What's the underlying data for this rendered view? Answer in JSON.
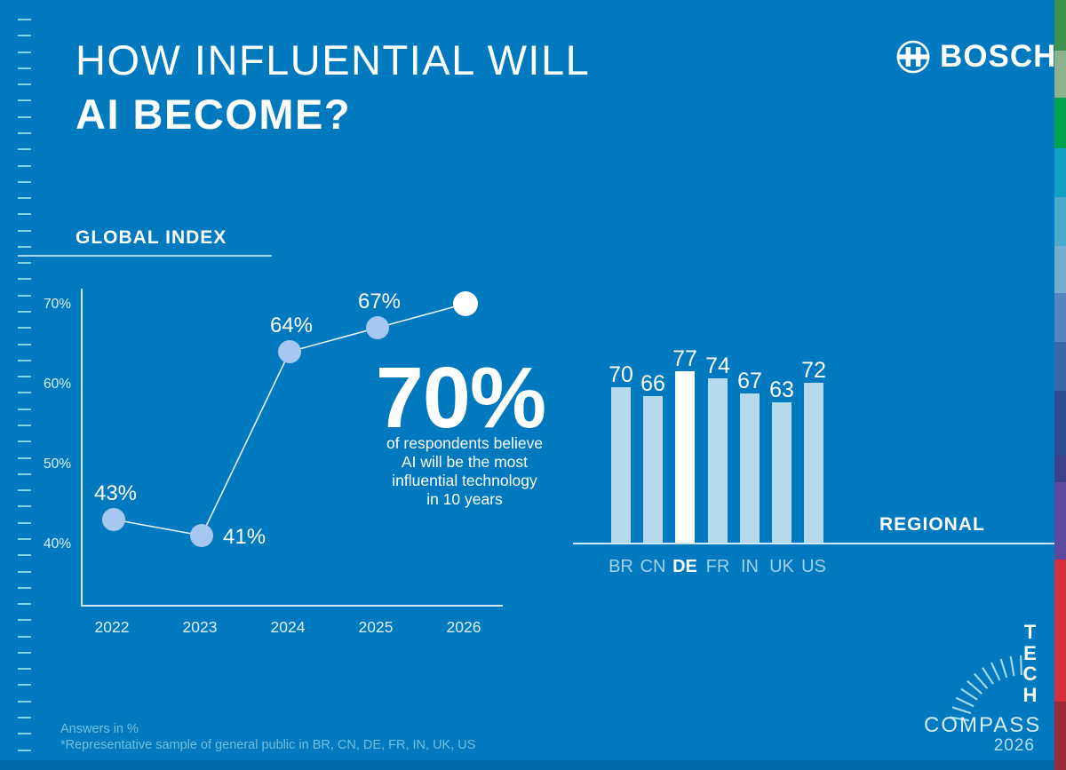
{
  "header": {
    "title_line1": "HOW INFLUENTIAL WILL",
    "title_line2": "AI BECOME?"
  },
  "brand": {
    "wordmark": "BOSCH"
  },
  "global_index": {
    "heading": "GLOBAL INDEX"
  },
  "regional": {
    "heading": "REGIONAL"
  },
  "callout": {
    "value": "70%",
    "lines": [
      "of respondents believe",
      "AI will be the most",
      "influential technology",
      "in 10 years"
    ]
  },
  "footer": {
    "note1": "Answers in %",
    "note2": "*Representative sample of general public in BR, CN, DE, FR, IN, UK, US"
  },
  "tech_compass": {
    "line1": "TECH",
    "line2": "COMPASS",
    "year": "2026"
  },
  "colors": {
    "background": "#0079be",
    "bottom_stripe": "#0069aa",
    "bar_fill": "#b7d9ee",
    "bar_highlight": "#ffffff",
    "dot_fill": "#a6c7f0",
    "dot_highlight": "#ffffff",
    "line_stroke": "#e8f4fb",
    "axis_stroke": "#cfe8f5",
    "label_light": "#dff0fa",
    "value_label": "#ffffff",
    "category_label": "#a3d0ec",
    "category_highlight": "#ffffff",
    "footer_text": "#72bedf",
    "ruler_tick": "#82d2e8",
    "compass_tick": "#9fd9ec",
    "edge_stripe": [
      "#3f9150",
      "#8fb18c",
      "#00a24b",
      "#11a0c4",
      "#4ba9cb",
      "#73aed1",
      "#5585bd",
      "#3a67a8",
      "#2c4b90",
      "#3d4187",
      "#5d4a9e",
      "#d42f3f",
      "#9c2a39"
    ]
  },
  "chart_data": [
    {
      "type": "line",
      "title": "GLOBAL INDEX",
      "categories": [
        "2022",
        "2023",
        "2024",
        "2025",
        "2026"
      ],
      "values": [
        43,
        41,
        64,
        67,
        70
      ],
      "point_labels": [
        "43%",
        "41%",
        "64%",
        "67%",
        ""
      ],
      "y_tick_labels": [
        "70%",
        "60%",
        "50%",
        "40%"
      ],
      "y_tick_values": [
        70,
        60,
        50,
        40
      ],
      "ylim": [
        32,
        74
      ],
      "unit": "%",
      "highlight_index": 4,
      "grid": false,
      "legend_position": "none"
    },
    {
      "type": "bar",
      "title": "REGIONAL",
      "categories": [
        "BR",
        "CN",
        "DE",
        "FR",
        "IN",
        "UK",
        "US"
      ],
      "values": [
        70,
        66,
        77,
        74,
        67,
        63,
        72
      ],
      "value_labels": [
        "70",
        "66",
        "77",
        "74",
        "67",
        "63",
        "72"
      ],
      "highlight_category": "DE",
      "unit": "%",
      "grid": false,
      "legend_position": "none"
    }
  ]
}
